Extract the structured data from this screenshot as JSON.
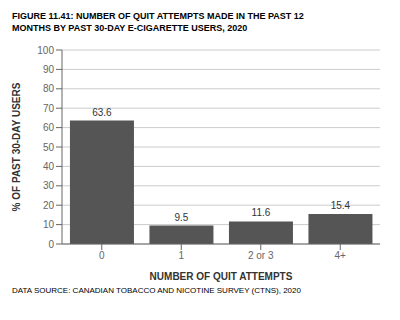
{
  "chart_data": {
    "type": "bar",
    "title": "FIGURE 11.41: NUMBER OF QUIT ATTEMPTS MADE IN THE PAST 12\nMONTHS BY PAST 30-DAY E-CIGARETTE USERS, 2020",
    "categories": [
      "0",
      "1",
      "2 or 3",
      "4+"
    ],
    "values": [
      63.6,
      9.5,
      11.6,
      15.4
    ],
    "color": "#555555",
    "xlabel": "NUMBER OF QUIT ATTEMPTS",
    "ylabel": "% OF PAST 30-DAY USERS",
    "ylim": [
      0,
      100
    ],
    "yticks": [
      0,
      10,
      20,
      30,
      40,
      50,
      60,
      70,
      80,
      90,
      100
    ],
    "grid": true,
    "data_labels": true,
    "source": "DATA SOURCE: CANADIAN TOBACCO AND NICOTINE SURVEY (CTNS), 2020"
  }
}
